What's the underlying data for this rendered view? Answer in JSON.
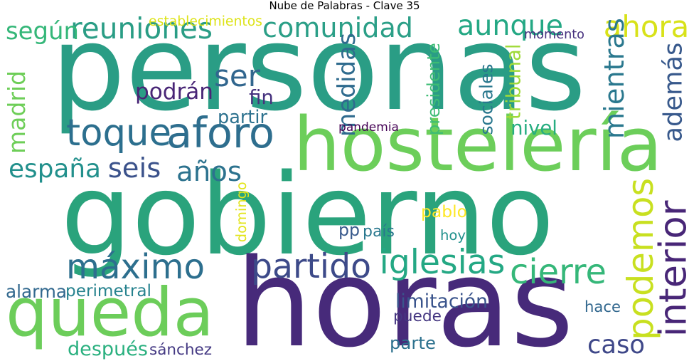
{
  "title": "Nube de Palabras - Clave 35",
  "words": [
    {
      "text": "personas",
      "color": "#2a9d85"
    },
    {
      "text": "gobierno",
      "color": "#2aa37c"
    },
    {
      "text": "horas",
      "color": "#472a7a"
    },
    {
      "text": "hostelería",
      "color": "#6cce5a"
    },
    {
      "text": "queda",
      "color": "#6ccd5a"
    },
    {
      "text": "toque",
      "color": "#2c6f8e"
    },
    {
      "text": "aforo",
      "color": "#2e6e8e"
    },
    {
      "text": "máximo",
      "color": "#2d6f8e"
    },
    {
      "text": "interior",
      "color": "#482677"
    },
    {
      "text": "podemos",
      "color": "#c8e020"
    },
    {
      "text": "comunidad",
      "color": "#2b9f87"
    },
    {
      "text": "reuniones",
      "color": "#2a9d85"
    },
    {
      "text": "iglesias",
      "color": "#24a884"
    },
    {
      "text": "partido",
      "color": "#3d4a89"
    },
    {
      "text": "aunque",
      "color": "#24a884"
    },
    {
      "text": "ahora",
      "color": "#d8e219"
    },
    {
      "text": "según",
      "color": "#35b779"
    },
    {
      "text": "cierre",
      "color": "#35b779"
    },
    {
      "text": "mientras",
      "color": "#2a788e"
    },
    {
      "text": "medidas",
      "color": "#2f6b8e"
    },
    {
      "text": "madrid",
      "color": "#6ece58"
    },
    {
      "text": "además",
      "color": "#38598c"
    },
    {
      "text": "españa",
      "color": "#22908c"
    },
    {
      "text": "ser",
      "color": "#31668e"
    },
    {
      "text": "seis",
      "color": "#3b528b"
    },
    {
      "text": "años",
      "color": "#2c728e"
    },
    {
      "text": "caso",
      "color": "#3f4889"
    },
    {
      "text": "podrán",
      "color": "#482576"
    },
    {
      "text": "alarma",
      "color": "#31688e"
    },
    {
      "text": "perimetral",
      "color": "#26828e"
    },
    {
      "text": "hoy",
      "color": "#21918c"
    },
    {
      "text": "después",
      "color": "#2ab07f"
    },
    {
      "text": "sánchez",
      "color": "#443983"
    },
    {
      "text": "limitación",
      "color": "#3a548c"
    },
    {
      "text": "puede",
      "color": "#453781"
    },
    {
      "text": "parte",
      "color": "#2c718e"
    },
    {
      "text": "hace",
      "color": "#31678e"
    },
    {
      "text": "nivel",
      "color": "#27ad81"
    },
    {
      "text": "pandemia",
      "color": "#440154"
    },
    {
      "text": "partir",
      "color": "#2c718e"
    },
    {
      "text": "fin",
      "color": "#46327e"
    },
    {
      "text": "momento",
      "color": "#46307e"
    },
    {
      "text": "tribunal",
      "color": "#a0da39"
    },
    {
      "text": "presidente",
      "color": "#3dbc74"
    },
    {
      "text": "sociales",
      "color": "#2a788e"
    },
    {
      "text": "domingo",
      "color": "#e2e418"
    },
    {
      "text": "pablo",
      "color": "#fde725"
    },
    {
      "text": "pp",
      "color": "#38598c"
    },
    {
      "text": "país",
      "color": "#2a788e"
    },
    {
      "text": "establecimientos",
      "color": "#dde318"
    }
  ]
}
